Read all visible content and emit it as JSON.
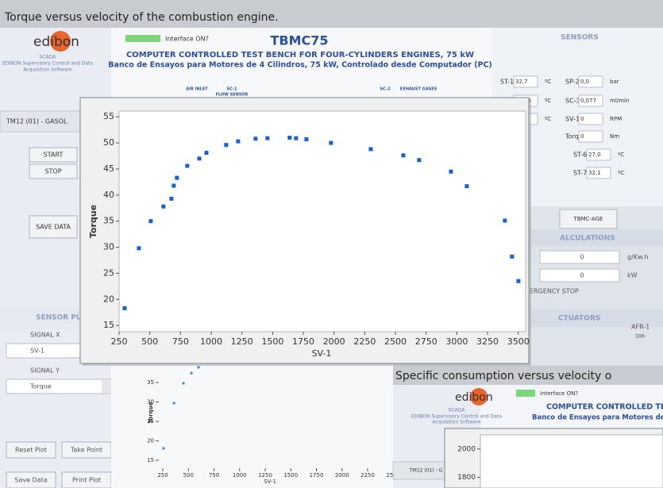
{
  "captions": {
    "top": "Torque versus velocity of the combustion engine.",
    "bottom": "Specific consumption versus velocity o"
  },
  "app": {
    "logo": "edibon",
    "scada": "SCADA",
    "scada_sub1": "EDIBON Supervisory Control and Data",
    "scada_sub2": "Acquisition Software",
    "interface": "Interface ON?",
    "model": "TBMC75",
    "title": "COMPUTER CONTROLLED TEST BENCH FOR FOUR-CYLINDERS ENGINES, 75 kW",
    "subtitle": "Banco de Ensayos para Motores de 4 Cilindros, 75 kW, Controlado desde Computador (PC)",
    "diagram": [
      "AIR INLET",
      "SC-1",
      "FLOW SENSOR",
      "SC-2",
      "EXHAUST GASES"
    ],
    "module": "TM12 (01) - GASOL",
    "start": "START",
    "stop": "STOP",
    "save_data": "SAVE DATA",
    "sensor_plot": "SENSOR PL",
    "signal_x": "SIGNAL X",
    "signal_x_value": "SV-1",
    "signal_y": "SIGNAL Y",
    "signal_y_value": "Torque",
    "buttons": [
      "Reset Plot",
      "Take Point",
      "Save Data",
      "Print Plot"
    ],
    "sensors_title": "SENSORS",
    "sensors": [
      [
        "ST-1",
        "32,7",
        "ºC"
      ],
      [
        "SP-2",
        "0,0",
        "bar"
      ],
      [
        "ST-2",
        "143,6",
        "ºC"
      ],
      [
        "SC-3",
        "0,077",
        "ml/min"
      ],
      [
        "ST-3",
        "31,8",
        "ºC"
      ],
      [
        "SV-1",
        "0",
        "RPM"
      ],
      [
        "Torque",
        "0",
        "Nm"
      ],
      [
        "ST-6",
        "27,0",
        "ºC"
      ],
      [
        "ST-7",
        "32,1",
        "ºC"
      ]
    ],
    "age_button": "TBMC-AGE",
    "calculations": "ALCULATIONS",
    "calc": [
      [
        "0",
        "g/Kw.h"
      ],
      [
        "0",
        "kW"
      ]
    ],
    "emergency": "ERGENCY STOP",
    "actuators": "CTUATORS",
    "afr": "AFR-1",
    "afr_tick": "100-",
    "clip_module": "TM12 (01) - G",
    "clip_title": "COMPUTER CONTROLLED TEST",
    "clip_subtitle": "Banco de Ensayos para Motores de"
  },
  "chart_data": [
    {
      "type": "scatter",
      "x_label": "SV-1",
      "y_label": "Torque",
      "color": "#1660d6",
      "grid": false,
      "x": [
        295,
        411,
        508,
        611,
        676,
        695,
        721,
        805,
        903,
        961,
        1122,
        1219,
        1361,
        1458,
        1639,
        1691,
        1775,
        1975,
        2299,
        2564,
        2693,
        2952,
        3081,
        3391,
        3449,
        3501
      ],
      "values": [
        18.3,
        29.8,
        35,
        37.8,
        39.3,
        41.8,
        43.3,
        45.6,
        47,
        48.1,
        49.6,
        50.3,
        50.8,
        50.9,
        51,
        50.9,
        50.7,
        50,
        48.8,
        47.6,
        46.7,
        44.5,
        41.7,
        35.1,
        28.2,
        23.5
      ],
      "xlim": [
        250,
        3560
      ],
      "ylim": [
        13.8,
        56.1
      ],
      "xticks": [
        250,
        500,
        750,
        1000,
        1250,
        1500,
        1750,
        2000,
        2250,
        2500,
        2750,
        3000,
        3250,
        3500
      ],
      "yticks": [
        15,
        20,
        25,
        30,
        35,
        40,
        45,
        50,
        55
      ]
    },
    {
      "type": "scatter",
      "x_label": "SV-1",
      "y_label": "Torque",
      "color": "#4a86e0",
      "grid": false,
      "x": [
        258,
        359,
        452,
        529,
        599
      ],
      "values": [
        18.1,
        29.7,
        34.8,
        37.4,
        38.9
      ],
      "xlim": [
        211,
        2560
      ],
      "ylim": [
        13,
        40
      ],
      "xticks": [
        250,
        500,
        750,
        1000,
        1250,
        1500,
        1750,
        2000,
        2250,
        2500
      ],
      "yticks": [
        15,
        20,
        25,
        30,
        35
      ]
    },
    {
      "type": "scatter",
      "color": "#1660d6",
      "grid": false,
      "x": [],
      "values": [],
      "ylim": [
        1725,
        2100
      ],
      "yticks": [
        1800,
        2000
      ]
    }
  ]
}
